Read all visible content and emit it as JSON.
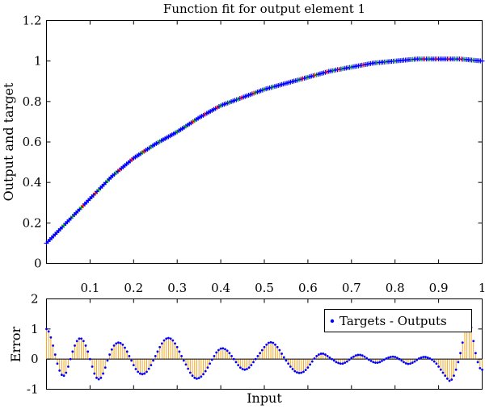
{
  "chart_data": [
    {
      "type": "line",
      "title": "Function fit for output element 1",
      "xlabel": "",
      "ylabel": "Output and target",
      "xlim": [
        0,
        1
      ],
      "ylim": [
        0,
        1.2
      ],
      "xticks": [
        "0.1",
        "0.2",
        "0.3",
        "0.4",
        "0.5",
        "0.6",
        "0.7",
        "0.8",
        "0.9",
        "1"
      ],
      "yticks": [
        "0",
        "0.2",
        "0.4",
        "0.6",
        "0.8",
        "1",
        "1.2"
      ],
      "x": [
        0.0,
        0.05,
        0.1,
        0.15,
        0.2,
        0.25,
        0.3,
        0.35,
        0.4,
        0.45,
        0.5,
        0.55,
        0.6,
        0.65,
        0.7,
        0.75,
        0.8,
        0.85,
        0.9,
        0.95,
        1.0
      ],
      "series": [
        {
          "values": [
            0.1,
            0.21,
            0.32,
            0.43,
            0.52,
            0.59,
            0.65,
            0.72,
            0.78,
            0.82,
            0.86,
            0.89,
            0.92,
            0.95,
            0.97,
            0.99,
            1.0,
            1.01,
            1.01,
            1.01,
            1.0
          ],
          "colors": [
            "#0000ff",
            "#00aa00",
            "#ff0000"
          ]
        }
      ]
    },
    {
      "type": "stem",
      "xlabel": "Input",
      "ylabel": "Error",
      "xlim": [
        0,
        1
      ],
      "ylim": [
        -1,
        2
      ],
      "yticks": [
        "-1",
        "0",
        "1",
        "2"
      ],
      "x": [
        0.0,
        0.005,
        0.01,
        0.015,
        0.02,
        0.025,
        0.03,
        0.035,
        0.04,
        0.045,
        0.05,
        0.055,
        0.06,
        0.065,
        0.07,
        0.075,
        0.08,
        0.085,
        0.09,
        0.095,
        0.1,
        0.105,
        0.11,
        0.115,
        0.12,
        0.125,
        0.13,
        0.135,
        0.14,
        0.145,
        0.15,
        0.155,
        0.16,
        0.165,
        0.17,
        0.175,
        0.18,
        0.185,
        0.19,
        0.195,
        0.2,
        0.205,
        0.21,
        0.215,
        0.22,
        0.225,
        0.23,
        0.235,
        0.24,
        0.245,
        0.25,
        0.255,
        0.26,
        0.265,
        0.27,
        0.275,
        0.28,
        0.285,
        0.29,
        0.295,
        0.3,
        0.305,
        0.31,
        0.315,
        0.32,
        0.325,
        0.33,
        0.335,
        0.34,
        0.345,
        0.35,
        0.355,
        0.36,
        0.365,
        0.37,
        0.375,
        0.38,
        0.385,
        0.39,
        0.395,
        0.4,
        0.405,
        0.41,
        0.415,
        0.42,
        0.425,
        0.43,
        0.435,
        0.44,
        0.445,
        0.45,
        0.455,
        0.46,
        0.465,
        0.47,
        0.475,
        0.48,
        0.485,
        0.49,
        0.495,
        0.5,
        0.505,
        0.51,
        0.515,
        0.52,
        0.525,
        0.53,
        0.535,
        0.54,
        0.545,
        0.55,
        0.555,
        0.56,
        0.565,
        0.57,
        0.575,
        0.58,
        0.585,
        0.59,
        0.595,
        0.6,
        0.605,
        0.61,
        0.615,
        0.62,
        0.625,
        0.63,
        0.635,
        0.64,
        0.645,
        0.65,
        0.655,
        0.66,
        0.665,
        0.67,
        0.675,
        0.68,
        0.685,
        0.69,
        0.695,
        0.7,
        0.705,
        0.71,
        0.715,
        0.72,
        0.725,
        0.73,
        0.735,
        0.74,
        0.745,
        0.75,
        0.755,
        0.76,
        0.765,
        0.77,
        0.775,
        0.78,
        0.785,
        0.79,
        0.795,
        0.8,
        0.805,
        0.81,
        0.815,
        0.82,
        0.825,
        0.83,
        0.835,
        0.84,
        0.845,
        0.85,
        0.855,
        0.86,
        0.865,
        0.87,
        0.875,
        0.88,
        0.885,
        0.89,
        0.895,
        0.9,
        0.905,
        0.91,
        0.915,
        0.92,
        0.925,
        0.93,
        0.935,
        0.94,
        0.945,
        0.95,
        0.955,
        0.96,
        0.965,
        0.97,
        0.975,
        0.98,
        0.985,
        0.99,
        0.995,
        1.0
      ],
      "values": [
        1.0,
        0.92,
        0.72,
        0.45,
        0.15,
        -0.15,
        -0.38,
        -0.52,
        -0.55,
        -0.45,
        -0.25,
        0.0,
        0.25,
        0.45,
        0.6,
        0.68,
        0.68,
        0.6,
        0.45,
        0.25,
        0.0,
        -0.25,
        -0.48,
        -0.62,
        -0.67,
        -0.62,
        -0.48,
        -0.28,
        -0.05,
        0.15,
        0.32,
        0.45,
        0.52,
        0.55,
        0.53,
        0.48,
        0.38,
        0.25,
        0.1,
        -0.05,
        -0.2,
        -0.33,
        -0.42,
        -0.48,
        -0.5,
        -0.48,
        -0.42,
        -0.32,
        -0.2,
        -0.05,
        0.1,
        0.25,
        0.4,
        0.52,
        0.62,
        0.68,
        0.7,
        0.68,
        0.62,
        0.52,
        0.4,
        0.25,
        0.1,
        -0.05,
        -0.18,
        -0.32,
        -0.45,
        -0.55,
        -0.62,
        -0.65,
        -0.63,
        -0.58,
        -0.5,
        -0.4,
        -0.28,
        -0.15,
        -0.02,
        0.1,
        0.22,
        0.3,
        0.35,
        0.36,
        0.33,
        0.28,
        0.2,
        0.1,
        0.0,
        -0.1,
        -0.2,
        -0.28,
        -0.33,
        -0.35,
        -0.33,
        -0.28,
        -0.2,
        -0.1,
        0.0,
        0.1,
        0.2,
        0.3,
        0.4,
        0.48,
        0.54,
        0.56,
        0.54,
        0.48,
        0.4,
        0.3,
        0.18,
        0.06,
        -0.05,
        -0.15,
        -0.25,
        -0.33,
        -0.4,
        -0.44,
        -0.46,
        -0.45,
        -0.42,
        -0.36,
        -0.28,
        -0.18,
        -0.08,
        0.02,
        0.1,
        0.15,
        0.18,
        0.18,
        0.15,
        0.1,
        0.05,
        0.0,
        -0.05,
        -0.1,
        -0.13,
        -0.15,
        -0.15,
        -0.12,
        -0.08,
        -0.02,
        0.04,
        0.08,
        0.12,
        0.14,
        0.14,
        0.12,
        0.08,
        0.03,
        -0.02,
        -0.06,
        -0.1,
        -0.12,
        -0.12,
        -0.1,
        -0.06,
        -0.02,
        0.02,
        0.05,
        0.07,
        0.08,
        0.07,
        0.04,
        0.0,
        -0.05,
        -0.1,
        -0.14,
        -0.16,
        -0.15,
        -0.12,
        -0.08,
        -0.03,
        0.02,
        0.05,
        0.07,
        0.07,
        0.05,
        0.02,
        -0.02,
        -0.08,
        -0.15,
        -0.25,
        -0.35,
        -0.45,
        -0.55,
        -0.65,
        -0.72,
        -0.68,
        -0.55,
        -0.35,
        -0.1,
        0.2,
        0.55,
        0.95,
        1.3,
        1.4,
        1.05,
        0.6,
        0.2,
        -0.1,
        -0.3,
        -0.35
      ],
      "legend": "Targets - Outputs",
      "legend_position": "top-right",
      "colors": {
        "stem": "#f5a623",
        "marker": "#0000ff",
        "zero": "#000000"
      }
    }
  ]
}
